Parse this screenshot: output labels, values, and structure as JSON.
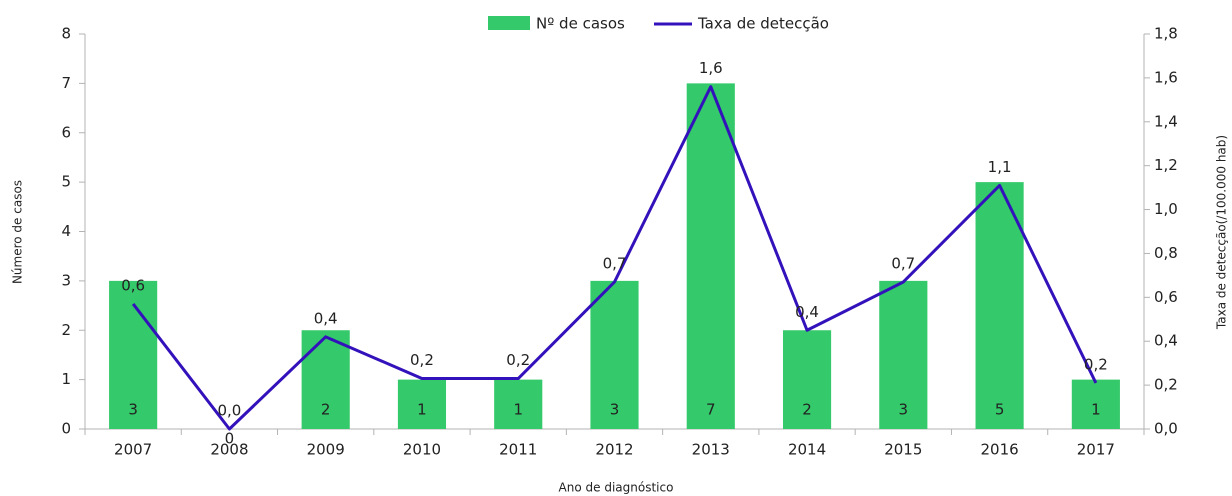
{
  "chart_data": {
    "type": "bar",
    "categories": [
      "2007",
      "2008",
      "2009",
      "2010",
      "2011",
      "2012",
      "2013",
      "2014",
      "2015",
      "2016",
      "2017"
    ],
    "series": [
      {
        "name": "Nº de casos",
        "color": "#34c96a",
        "values": [
          3,
          0,
          2,
          1,
          1,
          3,
          7,
          2,
          3,
          5,
          1
        ]
      },
      {
        "name": "Taxa de detecção",
        "color": "#3311bb",
        "axis": "y2",
        "type": "line",
        "values": [
          0.57,
          0,
          0.42,
          0.23,
          0.23,
          0.67,
          1.56,
          0.45,
          0.67,
          1.11,
          0.21
        ],
        "value_labels": [
          "0,6",
          "0,0",
          "0,4",
          "0,2",
          "0,2",
          "0,7",
          "1,6",
          "0,4",
          "0,7",
          "1,1",
          "0,2"
        ]
      }
    ],
    "xlabel": "Ano de diagnóstico",
    "ylabel": "Número de casos",
    "y2label": "Taxa de detecção(/100.000 hab)",
    "ylim": [
      0,
      8
    ],
    "yticks": [
      0,
      1,
      2,
      3,
      4,
      5,
      6,
      7,
      8
    ],
    "y2lim": [
      0,
      1.8
    ],
    "y2ticks": [
      {
        "value": 0,
        "label": "0,0"
      },
      {
        "value": 0.2,
        "label": "0,2"
      },
      {
        "value": 0.4,
        "label": "0,4"
      },
      {
        "value": 0.6,
        "label": "0,6"
      },
      {
        "value": 0.8,
        "label": "0,8"
      },
      {
        "value": 1.0,
        "label": "1,0"
      },
      {
        "value": 1.2,
        "label": "1,2"
      },
      {
        "value": 1.4,
        "label": "1,4"
      },
      {
        "value": 1.6,
        "label": "1,6"
      },
      {
        "value": 1.8,
        "label": "1,8"
      }
    ],
    "legend": "top",
    "grid": false
  }
}
